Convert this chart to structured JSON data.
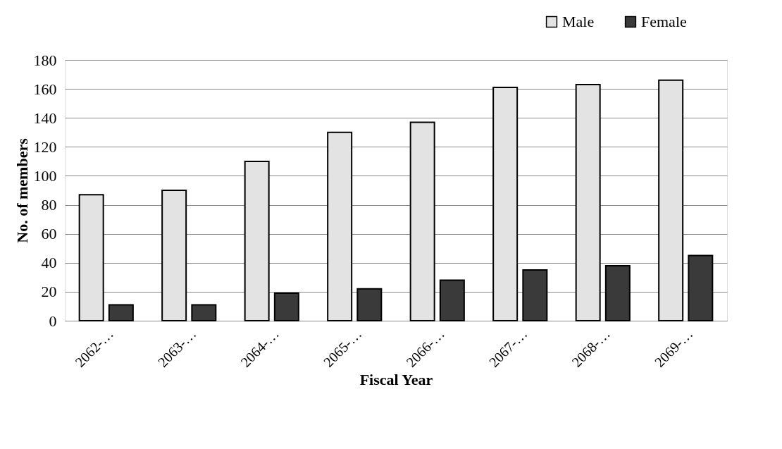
{
  "chart_data": {
    "type": "bar",
    "xlabel": "Fiscal Year",
    "ylabel": "No. of members",
    "categories": [
      "2062-…",
      "2063-…",
      "2064-…",
      "2065-…",
      "2066-…",
      "2067-…",
      "2068-…",
      "2069-…"
    ],
    "series": [
      {
        "name": "Male",
        "color": "#e3e3e3",
        "values": [
          87,
          90,
          110,
          130,
          137,
          161,
          163,
          166
        ]
      },
      {
        "name": "Female",
        "color": "#3a3a3a",
        "values": [
          11,
          11,
          19,
          22,
          28,
          35,
          38,
          45
        ]
      }
    ],
    "ylim": [
      0,
      180
    ],
    "yticks": [
      0,
      20,
      40,
      60,
      80,
      100,
      120,
      140,
      160,
      180
    ],
    "grid": "y",
    "legend": "top right"
  }
}
